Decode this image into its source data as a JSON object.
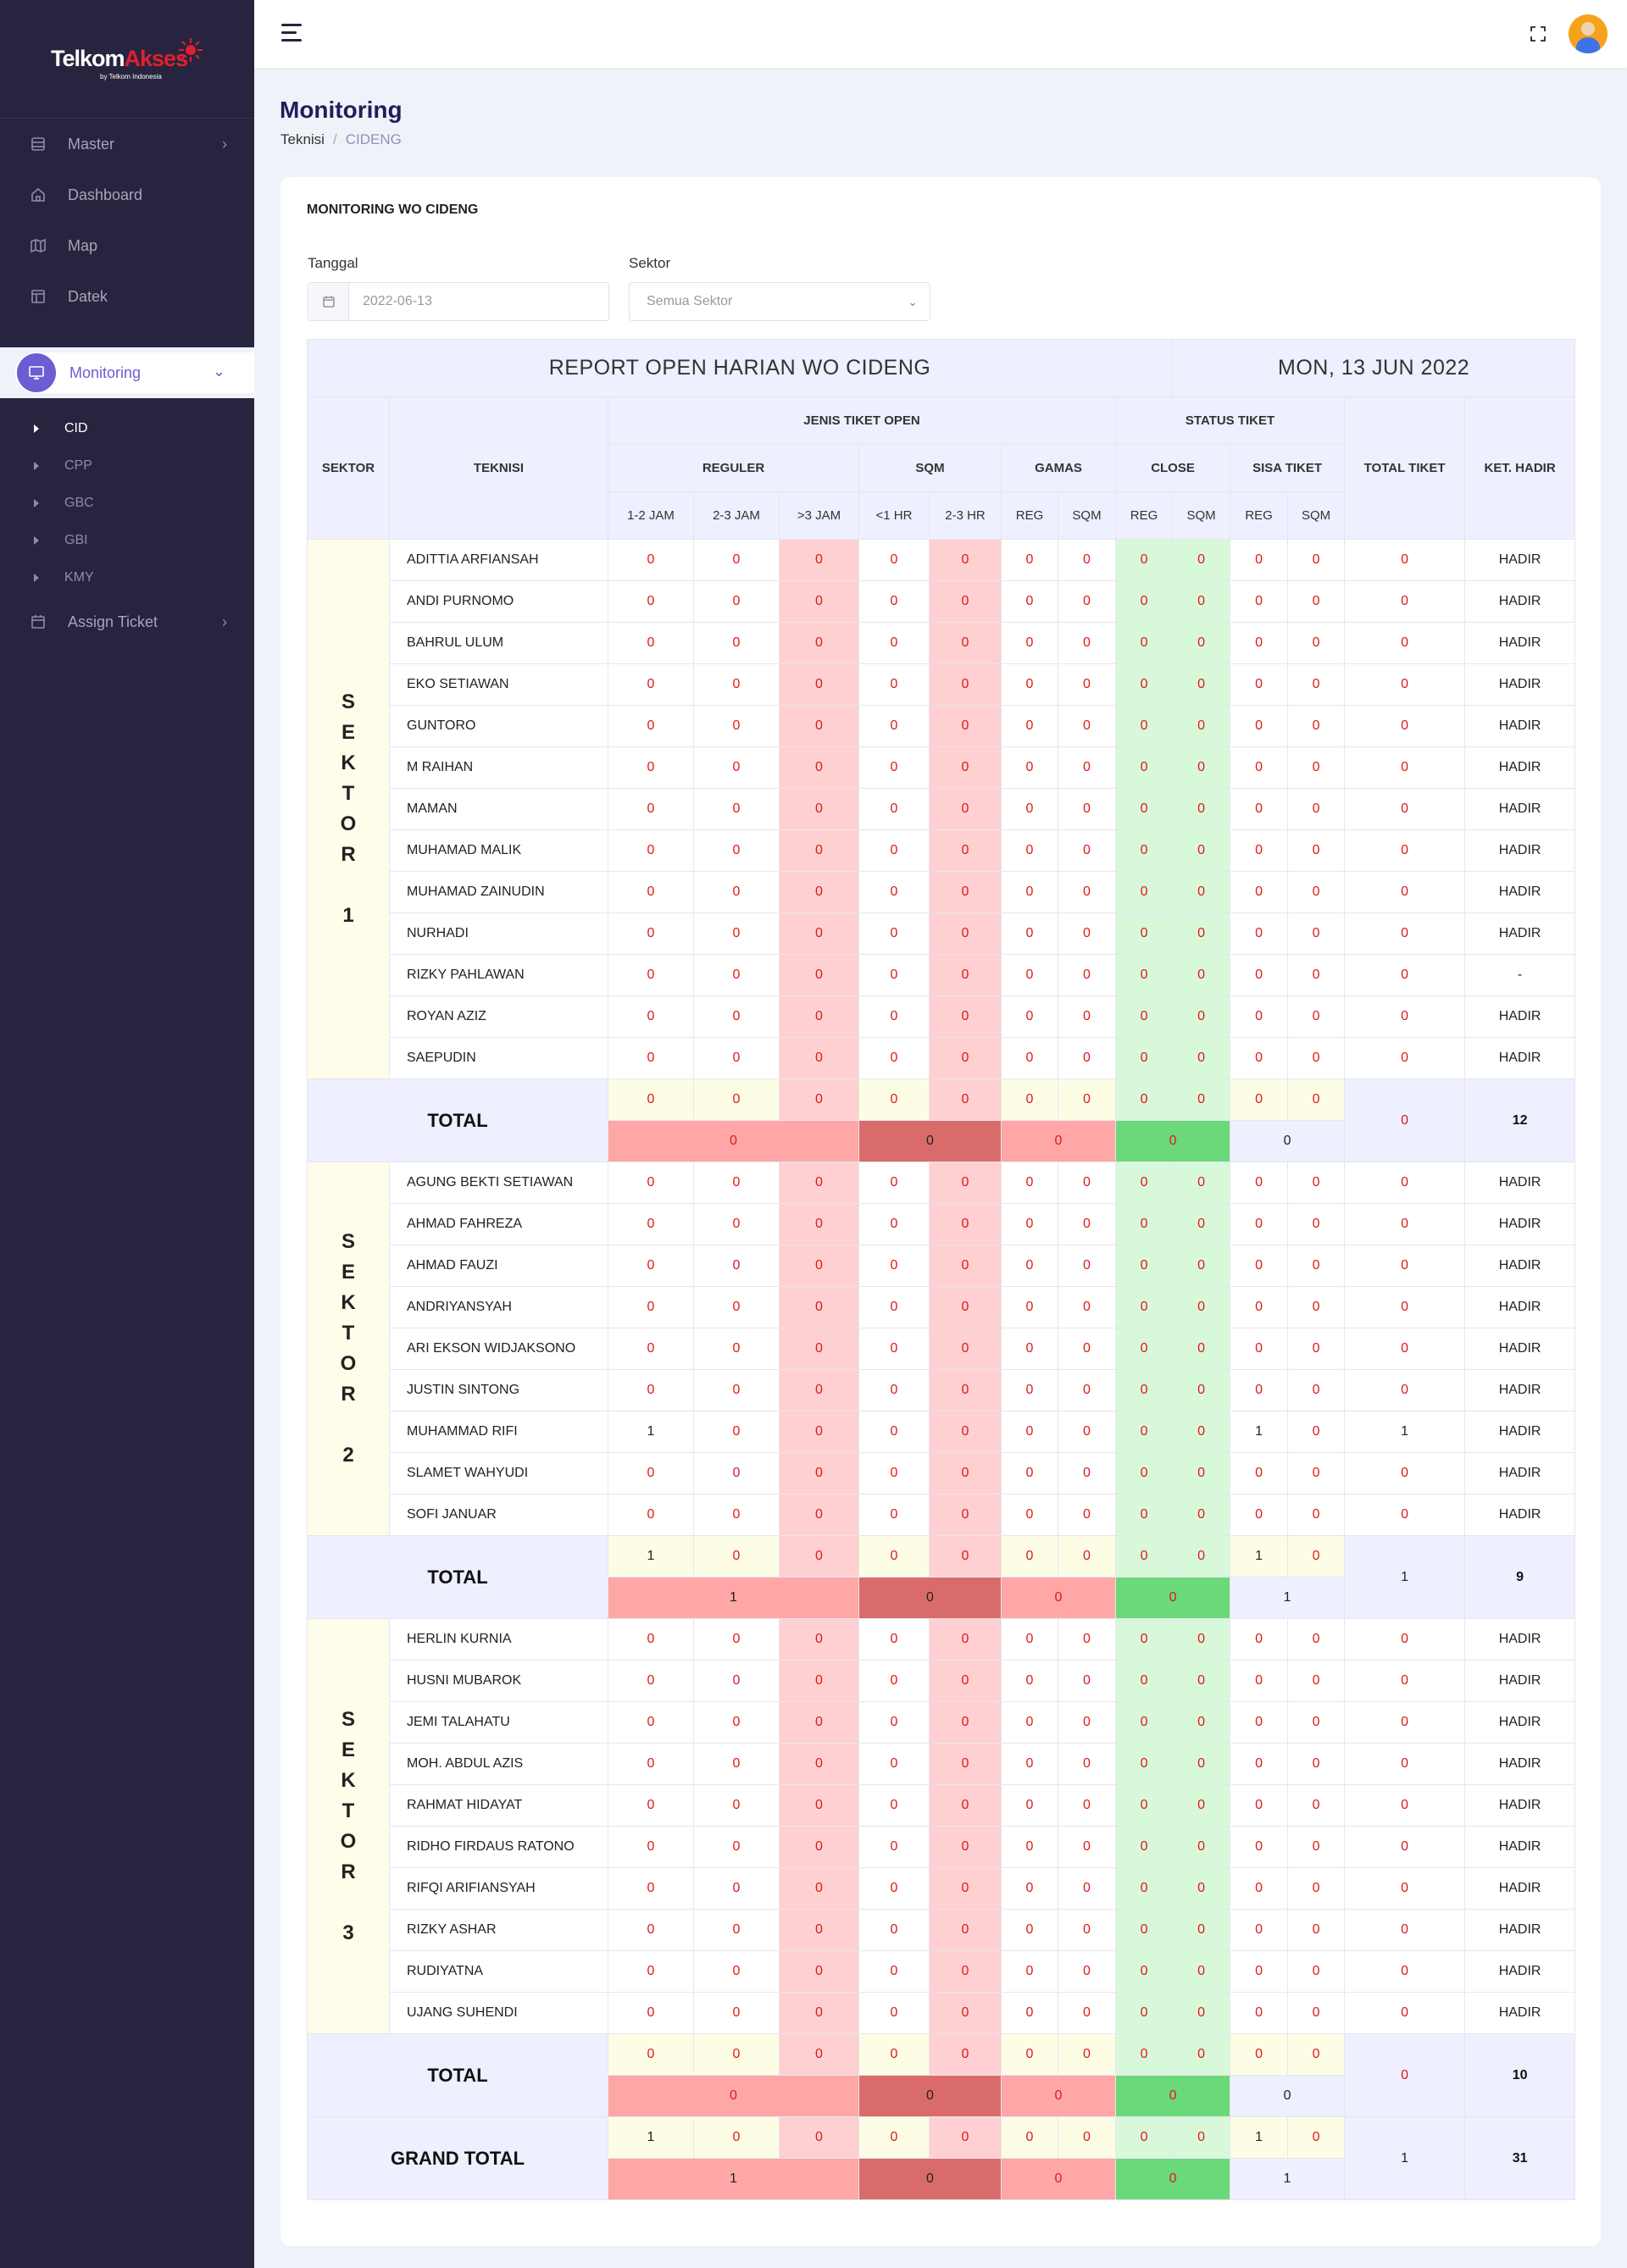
{
  "sidebar": {
    "logo": {
      "text_main": "Telkom",
      "text_accent": "Akses",
      "sub": "by Telkom Indonesia"
    },
    "menu_top": [
      {
        "label": "Master",
        "icon": "database-icon",
        "has_chevron": true
      },
      {
        "label": "Dashboard",
        "icon": "home-icon",
        "has_chevron": false
      },
      {
        "label": "Map",
        "icon": "map-icon",
        "has_chevron": false
      },
      {
        "label": "Datek",
        "icon": "layout-icon",
        "has_chevron": false
      }
    ],
    "active": {
      "label": "Monitoring",
      "icon": "monitor-icon"
    },
    "sub_items": [
      "CID",
      "CPP",
      "GBC",
      "GBI",
      "KMY"
    ],
    "active_sub": "CID",
    "menu_bottom": [
      {
        "label": "Assign Ticket",
        "icon": "calendar-icon"
      }
    ]
  },
  "page": {
    "title": "Monitoring",
    "breadcrumb": [
      "Teknisi",
      "CIDENG"
    ]
  },
  "card": {
    "title": "MONITORING WO CIDENG",
    "tanggal_label": "Tanggal",
    "tanggal_value": "2022-06-13",
    "sektor_label": "Sektor",
    "sektor_placeholder": "Semua Sektor"
  },
  "table": {
    "report_title": "REPORT OPEN HARIAN WO CIDENG",
    "report_date": "MON, 13 JUN 2022",
    "headers": {
      "sektor": "SEKTOR",
      "teknisi": "TEKNISI",
      "jenis": "JENIS TIKET OPEN",
      "status": "STATUS TIKET",
      "total": "TOTAL TIKET",
      "hadir": "KET. HADIR",
      "reguler": "REGULER",
      "sqm": "SQM",
      "gamas": "GAMAS",
      "close": "CLOSE",
      "sisa": "SISA TIKET",
      "sub": [
        "1-2 JAM",
        "2-3 JAM",
        ">3 JAM",
        "<1 HR",
        "2-3 HR",
        "REG",
        "SQM",
        "REG",
        "SQM",
        "REG",
        "SQM"
      ]
    },
    "total_label": "TOTAL",
    "grand_total_label": "GRAND TOTAL",
    "sectors": [
      {
        "label": "SEKTOR 1",
        "letters": [
          "S",
          "E",
          "K",
          "T",
          "O",
          "R",
          "",
          "1"
        ],
        "rows": [
          {
            "name": "ADITTIA ARFIANSAH",
            "v": [
              0,
              0,
              0,
              0,
              0,
              0,
              0,
              0,
              0,
              0,
              0
            ],
            "total": 0,
            "hadir": "HADIR"
          },
          {
            "name": "ANDI PURNOMO",
            "v": [
              0,
              0,
              0,
              0,
              0,
              0,
              0,
              0,
              0,
              0,
              0
            ],
            "total": 0,
            "hadir": "HADIR"
          },
          {
            "name": "BAHRUL ULUM",
            "v": [
              0,
              0,
              0,
              0,
              0,
              0,
              0,
              0,
              0,
              0,
              0
            ],
            "total": 0,
            "hadir": "HADIR"
          },
          {
            "name": "EKO SETIAWAN",
            "v": [
              0,
              0,
              0,
              0,
              0,
              0,
              0,
              0,
              0,
              0,
              0
            ],
            "total": 0,
            "hadir": "HADIR"
          },
          {
            "name": "GUNTORO",
            "v": [
              0,
              0,
              0,
              0,
              0,
              0,
              0,
              0,
              0,
              0,
              0
            ],
            "total": 0,
            "hadir": "HADIR"
          },
          {
            "name": "M RAIHAN",
            "v": [
              0,
              0,
              0,
              0,
              0,
              0,
              0,
              0,
              0,
              0,
              0
            ],
            "total": 0,
            "hadir": "HADIR"
          },
          {
            "name": "MAMAN",
            "v": [
              0,
              0,
              0,
              0,
              0,
              0,
              0,
              0,
              0,
              0,
              0
            ],
            "total": 0,
            "hadir": "HADIR"
          },
          {
            "name": "MUHAMAD MALIK",
            "v": [
              0,
              0,
              0,
              0,
              0,
              0,
              0,
              0,
              0,
              0,
              0
            ],
            "total": 0,
            "hadir": "HADIR"
          },
          {
            "name": "MUHAMAD ZAINUDIN",
            "v": [
              0,
              0,
              0,
              0,
              0,
              0,
              0,
              0,
              0,
              0,
              0
            ],
            "total": 0,
            "hadir": "HADIR"
          },
          {
            "name": "NURHADI",
            "v": [
              0,
              0,
              0,
              0,
              0,
              0,
              0,
              0,
              0,
              0,
              0
            ],
            "total": 0,
            "hadir": "HADIR"
          },
          {
            "name": "RIZKY PAHLAWAN",
            "v": [
              0,
              0,
              0,
              0,
              0,
              0,
              0,
              0,
              0,
              0,
              0
            ],
            "total": 0,
            "hadir": "-"
          },
          {
            "name": "ROYAN AZIZ",
            "v": [
              0,
              0,
              0,
              0,
              0,
              0,
              0,
              0,
              0,
              0,
              0
            ],
            "total": 0,
            "hadir": "HADIR"
          },
          {
            "name": "SAEPUDIN",
            "v": [
              0,
              0,
              0,
              0,
              0,
              0,
              0,
              0,
              0,
              0,
              0
            ],
            "total": 0,
            "hadir": "HADIR"
          }
        ],
        "totals": {
          "v": [
            0,
            0,
            0,
            0,
            0,
            0,
            0,
            0,
            0,
            0,
            0
          ],
          "reguler": 0,
          "sqm": 0,
          "gamas": 0,
          "close": 0,
          "sisa": 0,
          "total": 0,
          "hadir": 12
        }
      },
      {
        "label": "SEKTOR 2",
        "letters": [
          "S",
          "E",
          "K",
          "T",
          "O",
          "R",
          "",
          "2"
        ],
        "rows": [
          {
            "name": "AGUNG BEKTI SETIAWAN",
            "v": [
              0,
              0,
              0,
              0,
              0,
              0,
              0,
              0,
              0,
              0,
              0
            ],
            "total": 0,
            "hadir": "HADIR"
          },
          {
            "name": "AHMAD FAHREZA",
            "v": [
              0,
              0,
              0,
              0,
              0,
              0,
              0,
              0,
              0,
              0,
              0
            ],
            "total": 0,
            "hadir": "HADIR"
          },
          {
            "name": "AHMAD FAUZI",
            "v": [
              0,
              0,
              0,
              0,
              0,
              0,
              0,
              0,
              0,
              0,
              0
            ],
            "total": 0,
            "hadir": "HADIR"
          },
          {
            "name": "ANDRIYANSYAH",
            "v": [
              0,
              0,
              0,
              0,
              0,
              0,
              0,
              0,
              0,
              0,
              0
            ],
            "total": 0,
            "hadir": "HADIR"
          },
          {
            "name": "ARI EKSON WIDJAKSONO",
            "v": [
              0,
              0,
              0,
              0,
              0,
              0,
              0,
              0,
              0,
              0,
              0
            ],
            "total": 0,
            "hadir": "HADIR"
          },
          {
            "name": "JUSTIN SINTONG",
            "v": [
              0,
              0,
              0,
              0,
              0,
              0,
              0,
              0,
              0,
              0,
              0
            ],
            "total": 0,
            "hadir": "HADIR"
          },
          {
            "name": "MUHAMMAD RIFI",
            "v": [
              1,
              0,
              0,
              0,
              0,
              0,
              0,
              0,
              0,
              1,
              0
            ],
            "total": 1,
            "hadir": "HADIR"
          },
          {
            "name": "SLAMET WAHYUDI",
            "v": [
              0,
              0,
              0,
              0,
              0,
              0,
              0,
              0,
              0,
              0,
              0
            ],
            "total": 0,
            "hadir": "HADIR"
          },
          {
            "name": "SOFI JANUAR",
            "v": [
              0,
              0,
              0,
              0,
              0,
              0,
              0,
              0,
              0,
              0,
              0
            ],
            "total": 0,
            "hadir": "HADIR"
          }
        ],
        "totals": {
          "v": [
            1,
            0,
            0,
            0,
            0,
            0,
            0,
            0,
            0,
            1,
            0
          ],
          "reguler": 1,
          "sqm": 0,
          "gamas": 0,
          "close": 0,
          "sisa": 1,
          "total": 1,
          "hadir": 9
        }
      },
      {
        "label": "SEKTOR 3",
        "letters": [
          "S",
          "E",
          "K",
          "T",
          "O",
          "R",
          "",
          "3"
        ],
        "rows": [
          {
            "name": "HERLIN KURNIA",
            "v": [
              0,
              0,
              0,
              0,
              0,
              0,
              0,
              0,
              0,
              0,
              0
            ],
            "total": 0,
            "hadir": "HADIR"
          },
          {
            "name": "HUSNI MUBAROK",
            "v": [
              0,
              0,
              0,
              0,
              0,
              0,
              0,
              0,
              0,
              0,
              0
            ],
            "total": 0,
            "hadir": "HADIR"
          },
          {
            "name": "JEMI TALAHATU",
            "v": [
              0,
              0,
              0,
              0,
              0,
              0,
              0,
              0,
              0,
              0,
              0
            ],
            "total": 0,
            "hadir": "HADIR"
          },
          {
            "name": "MOH. ABDUL AZIS",
            "v": [
              0,
              0,
              0,
              0,
              0,
              0,
              0,
              0,
              0,
              0,
              0
            ],
            "total": 0,
            "hadir": "HADIR"
          },
          {
            "name": "RAHMAT HIDAYAT",
            "v": [
              0,
              0,
              0,
              0,
              0,
              0,
              0,
              0,
              0,
              0,
              0
            ],
            "total": 0,
            "hadir": "HADIR"
          },
          {
            "name": "RIDHO FIRDAUS RATONO",
            "v": [
              0,
              0,
              0,
              0,
              0,
              0,
              0,
              0,
              0,
              0,
              0
            ],
            "total": 0,
            "hadir": "HADIR"
          },
          {
            "name": "RIFQI ARIFIANSYAH",
            "v": [
              0,
              0,
              0,
              0,
              0,
              0,
              0,
              0,
              0,
              0,
              0
            ],
            "total": 0,
            "hadir": "HADIR"
          },
          {
            "name": "RIZKY ASHAR",
            "v": [
              0,
              0,
              0,
              0,
              0,
              0,
              0,
              0,
              0,
              0,
              0
            ],
            "total": 0,
            "hadir": "HADIR"
          },
          {
            "name": "RUDIYATNA",
            "v": [
              0,
              0,
              0,
              0,
              0,
              0,
              0,
              0,
              0,
              0,
              0
            ],
            "total": 0,
            "hadir": "HADIR"
          },
          {
            "name": "UJANG SUHENDI",
            "v": [
              0,
              0,
              0,
              0,
              0,
              0,
              0,
              0,
              0,
              0,
              0
            ],
            "total": 0,
            "hadir": "HADIR"
          }
        ],
        "totals": {
          "v": [
            0,
            0,
            0,
            0,
            0,
            0,
            0,
            0,
            0,
            0,
            0
          ],
          "reguler": 0,
          "sqm": 0,
          "gamas": 0,
          "close": 0,
          "sisa": 0,
          "total": 0,
          "hadir": 10
        }
      }
    ],
    "grand_total": {
      "v": [
        1,
        0,
        0,
        0,
        0,
        0,
        0,
        0,
        0,
        1,
        0
      ],
      "reguler": 1,
      "sqm": 0,
      "gamas": 0,
      "close": 0,
      "sisa": 1,
      "total": 1,
      "hadir": 31
    }
  },
  "colors": {
    "sidebar_bg": "#27243f",
    "accent": "#6c5dd3",
    "zero_text": "#e01919",
    "col_pink": "#fed0d1",
    "col_green": "#d7f9da",
    "sektor_bg": "#fdfde9",
    "header_bg": "#eeefff"
  }
}
